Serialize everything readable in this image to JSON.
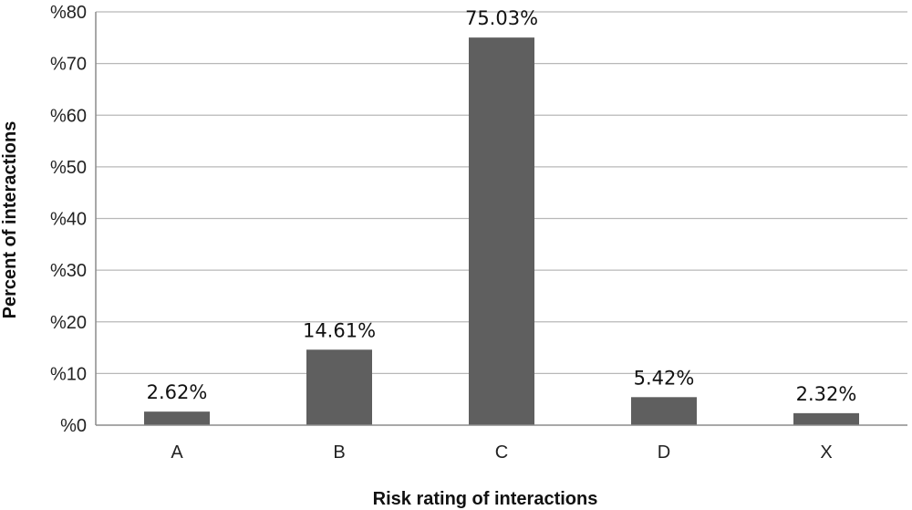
{
  "chart_data": {
    "type": "bar",
    "categories": [
      "A",
      "B",
      "C",
      "D",
      "X"
    ],
    "values": [
      2.62,
      14.61,
      75.03,
      5.42,
      2.32
    ],
    "data_labels": [
      "2.62%",
      "14.61%",
      "75.03%",
      "5.42%",
      "2.32%"
    ],
    "title": "",
    "xlabel": "Risk rating of interactions",
    "ylabel": "Percent of interactions",
    "ylim": [
      0,
      80
    ],
    "yticks": [
      0,
      10,
      20,
      30,
      40,
      50,
      60,
      70,
      80
    ],
    "ytick_labels": [
      "%0",
      "%10",
      "%20",
      "%30",
      "%40",
      "%50",
      "%60",
      "%70",
      "%80"
    ],
    "grid": true,
    "legend": "none",
    "colors": {
      "bar": "#5f5f5f",
      "grid": "#b8b8b8",
      "axis": "#8c8c8c"
    }
  }
}
